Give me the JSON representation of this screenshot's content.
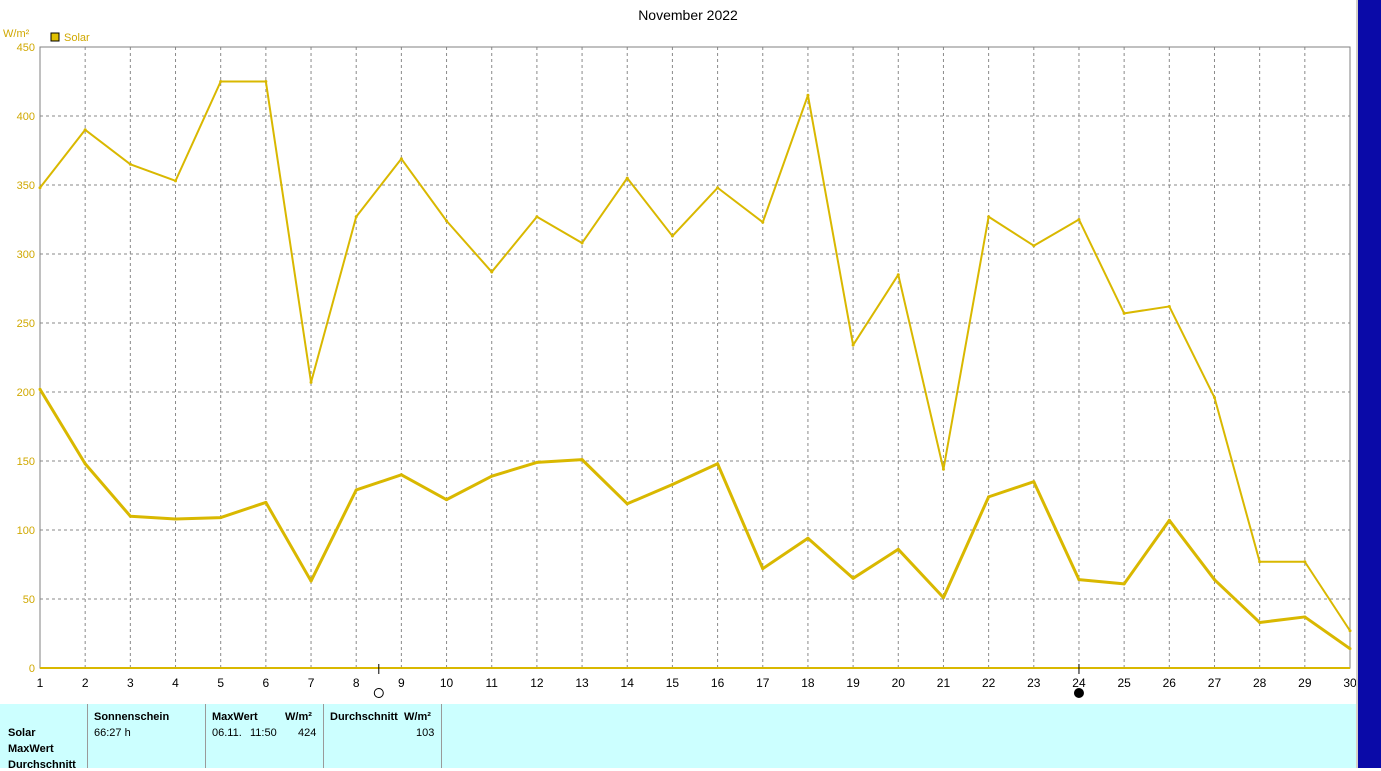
{
  "chart_data": {
    "type": "line",
    "title": "November 2022",
    "ylabel": "W/m²",
    "ylim": [
      0,
      450
    ],
    "yticks": [
      0,
      50,
      100,
      150,
      200,
      250,
      300,
      350,
      400,
      450
    ],
    "x": [
      1,
      2,
      3,
      4,
      5,
      6,
      7,
      8,
      9,
      10,
      11,
      12,
      13,
      14,
      15,
      16,
      17,
      18,
      19,
      20,
      21,
      22,
      23,
      24,
      25,
      26,
      27,
      28,
      29,
      30
    ],
    "series": [
      {
        "name": "Solar",
        "values": [
          348,
          390,
          365,
          353,
          425,
          425,
          207,
          327,
          369,
          324,
          287,
          327,
          308,
          355,
          313,
          348,
          323,
          415,
          234,
          285,
          144,
          327,
          306,
          325,
          257,
          262,
          196,
          77,
          77,
          27
        ]
      },
      {
        "values": [
          202,
          148,
          110,
          108,
          109,
          120,
          63,
          129,
          140,
          122,
          139,
          149,
          151,
          119,
          133,
          148,
          72,
          94,
          65,
          86,
          51,
          124,
          135,
          64,
          61,
          107,
          64,
          33,
          37,
          14
        ]
      }
    ],
    "grid": true,
    "legend": "top-left",
    "colors": {
      "line": "#d9b800",
      "legend_fill": "#e0c000",
      "axis_text": "#d0a800",
      "grid": "#8a8a8a"
    },
    "markers": [
      {
        "after_day": 8.5,
        "type": "full-moon"
      },
      {
        "after_day": 24,
        "type": "new-moon"
      }
    ]
  },
  "legend": {
    "label": "Solar"
  },
  "table": {
    "rows": [
      "Solar",
      "MaxWert",
      "Durchschnitt"
    ],
    "col1_header": "Sonnenschein",
    "col1_value": "66:27 h",
    "col2_header": "MaxWert",
    "col2_unit": "W/m²",
    "col2_date": "06.11.",
    "col2_time": "11:50",
    "col2_value": "424",
    "col3_header": "Durchschnitt",
    "col3_unit": "W/m²",
    "col3_value": "103"
  }
}
